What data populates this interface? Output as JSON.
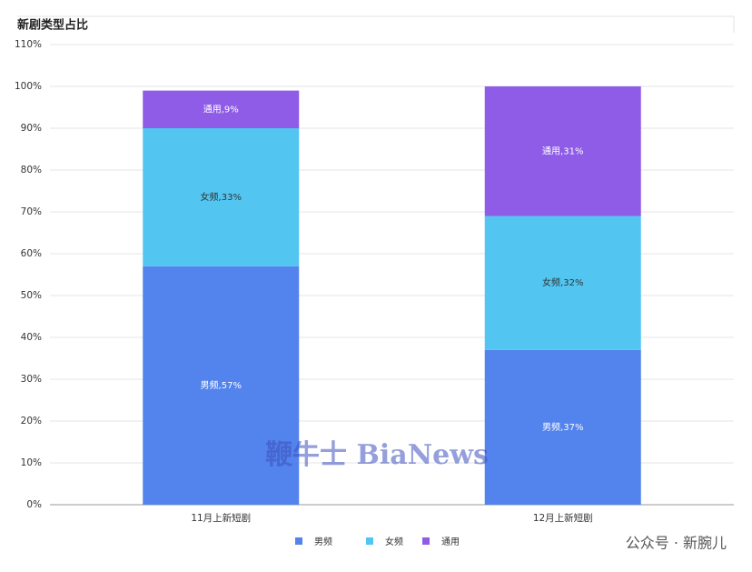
{
  "chart_data": {
    "type": "stacked_bar",
    "title": "新剧类型占比",
    "categories": [
      "11月上新短剧",
      "12月上新短剧"
    ],
    "series": [
      {
        "name": "男频",
        "color": "#5383ec",
        "values": [
          57,
          37
        ],
        "value_labels": [
          "男频,57%",
          "男频,37%"
        ]
      },
      {
        "name": "女频",
        "color": "#52c5f0",
        "values": [
          33,
          32
        ],
        "value_labels": [
          "女频,33%",
          "女频,32%"
        ]
      },
      {
        "name": "通用",
        "color": "#8f5ce8",
        "values": [
          9,
          31
        ],
        "value_labels": [
          "通用,9%",
          "通用,31%"
        ]
      }
    ],
    "ylim": [
      0,
      110
    ],
    "yticks": [
      {
        "value": 0,
        "label": "0%"
      },
      {
        "value": 10,
        "label": "10%"
      },
      {
        "value": 20,
        "label": "20%"
      },
      {
        "value": 30,
        "label": "30%"
      },
      {
        "value": 40,
        "label": "40%"
      },
      {
        "value": 50,
        "label": "50%"
      },
      {
        "value": 60,
        "label": "60%"
      },
      {
        "value": 70,
        "label": "70%"
      },
      {
        "value": 80,
        "label": "80%"
      },
      {
        "value": 90,
        "label": "90%"
      },
      {
        "value": 100,
        "label": "100%"
      },
      {
        "value": 110,
        "label": "110%"
      }
    ],
    "grid": true,
    "legend": "bottom",
    "watermark": "鞭牛士 BiaNews",
    "credit": "公众号 · 新腕儿"
  }
}
